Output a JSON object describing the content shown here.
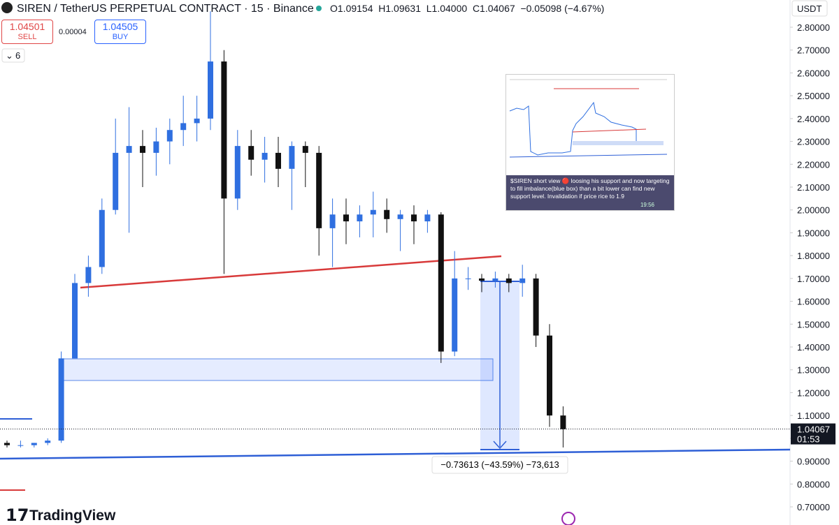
{
  "header": {
    "symbol": "SIREN / TetherUS PERPETUAL CONTRACT · 15 · Binance",
    "ohlc": "O1.09154  H1.09631  L1.04000  C1.04067  −0.05098 (−4.67%)",
    "currency": "USDT",
    "sell_price": "1.04501",
    "sell": "SELL",
    "spread": "0.00004",
    "buy_price": "1.04505",
    "buy": "BUY",
    "indicator_count": "6"
  },
  "chart_data": {
    "type": "candlestick",
    "up_color": "#2f6fe0",
    "down_color": "#111111",
    "candles": [
      [
        0.98,
        0.99,
        0.96,
        0.97
      ],
      [
        0.97,
        0.99,
        0.96,
        0.97
      ],
      [
        0.97,
        0.98,
        0.96,
        0.98
      ],
      [
        0.98,
        1.0,
        0.97,
        0.99
      ],
      [
        0.99,
        1.38,
        0.98,
        1.35
      ],
      [
        1.35,
        1.72,
        1.36,
        1.68
      ],
      [
        1.68,
        1.8,
        1.62,
        1.75
      ],
      [
        1.75,
        2.05,
        1.72,
        2.0
      ],
      [
        2.0,
        2.4,
        1.98,
        2.25
      ],
      [
        2.25,
        2.45,
        1.9,
        2.28
      ],
      [
        2.28,
        2.35,
        2.1,
        2.25
      ],
      [
        2.25,
        2.36,
        2.15,
        2.3
      ],
      [
        2.3,
        2.4,
        2.2,
        2.35
      ],
      [
        2.35,
        2.5,
        2.28,
        2.38
      ],
      [
        2.38,
        2.5,
        2.3,
        2.4
      ],
      [
        2.4,
        2.87,
        2.35,
        2.65
      ],
      [
        2.65,
        2.7,
        1.72,
        2.05
      ],
      [
        2.05,
        2.35,
        2.0,
        2.28
      ],
      [
        2.28,
        2.35,
        2.15,
        2.22
      ],
      [
        2.22,
        2.32,
        2.12,
        2.25
      ],
      [
        2.25,
        2.32,
        2.1,
        2.18
      ],
      [
        2.18,
        2.3,
        2.0,
        2.28
      ],
      [
        2.28,
        2.3,
        2.1,
        2.25
      ],
      [
        2.25,
        2.28,
        1.8,
        1.92
      ],
      [
        1.92,
        2.05,
        1.75,
        1.98
      ],
      [
        1.98,
        2.05,
        1.85,
        1.95
      ],
      [
        1.95,
        2.02,
        1.88,
        1.98
      ],
      [
        1.98,
        2.08,
        1.88,
        2.0
      ],
      [
        2.0,
        2.05,
        1.9,
        1.96
      ],
      [
        1.96,
        2.0,
        1.82,
        1.98
      ],
      [
        1.98,
        2.02,
        1.85,
        1.95
      ],
      [
        1.95,
        2.0,
        1.9,
        1.98
      ],
      [
        1.98,
        1.99,
        1.33,
        1.38
      ],
      [
        1.38,
        1.82,
        1.36,
        1.7
      ],
      [
        1.7,
        1.75,
        1.65,
        1.7
      ],
      [
        1.7,
        1.72,
        1.64,
        1.69
      ],
      [
        1.69,
        1.73,
        1.66,
        1.7
      ],
      [
        1.7,
        1.72,
        1.64,
        1.68
      ],
      [
        1.68,
        1.76,
        1.62,
        1.7
      ],
      [
        1.7,
        1.72,
        1.4,
        1.45
      ],
      [
        1.45,
        1.5,
        1.05,
        1.1
      ],
      [
        1.1,
        1.14,
        0.96,
        1.04
      ]
    ],
    "ylim": [
      0.65,
      2.87
    ],
    "yticks": [
      {
        "value": 0.7,
        "label": "0.70000"
      },
      {
        "value": 0.8,
        "label": "0.80000"
      },
      {
        "value": 0.9,
        "label": "0.90000"
      },
      {
        "value": 1.0,
        "label": "1.00000"
      },
      {
        "value": 1.1,
        "label": "1.10000"
      },
      {
        "value": 1.2,
        "label": "1.20000"
      },
      {
        "value": 1.3,
        "label": "1.30000"
      },
      {
        "value": 1.4,
        "label": "1.40000"
      },
      {
        "value": 1.5,
        "label": "1.50000"
      },
      {
        "value": 1.6,
        "label": "1.60000"
      },
      {
        "value": 1.7,
        "label": "1.70000"
      },
      {
        "value": 1.8,
        "label": "1.80000"
      },
      {
        "value": 1.9,
        "label": "1.90000"
      },
      {
        "value": 2.0,
        "label": "2.00000"
      },
      {
        "value": 2.1,
        "label": "2.10000"
      },
      {
        "value": 2.2,
        "label": "2.20000"
      },
      {
        "value": 2.3,
        "label": "2.30000"
      },
      {
        "value": 2.4,
        "label": "2.40000"
      },
      {
        "value": 2.5,
        "label": "2.50000"
      },
      {
        "value": 2.6,
        "label": "2.60000"
      },
      {
        "value": 2.7,
        "label": "2.70000"
      },
      {
        "value": 2.8,
        "label": "2.80000"
      }
    ],
    "last_price": {
      "value": 1.04067,
      "label": "1.04067"
    },
    "countdown": "01:53",
    "measure_label": "−0.73613 (−43.59%) −73,613"
  },
  "inset": {
    "message": "$SIREN short view 🔴 loosing his support and now targeting to fill imbalance(blue box) than a bit lower can find new support level. Invalidation if price rice to 1.9",
    "time": "19:56"
  },
  "footer": {
    "brand": "TradingView"
  }
}
